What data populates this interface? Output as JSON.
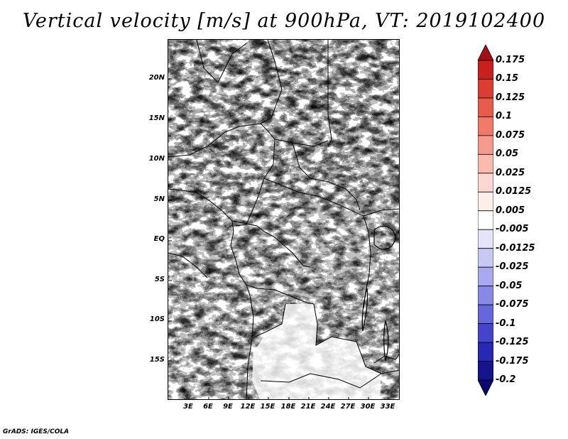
{
  "title": "Vertical velocity [m/s] at 900hPa, VT: 2019102400",
  "credit": "GrADS: IGES/COLA",
  "axes": {
    "lat_labels": [
      "20N",
      "15N",
      "10N",
      "5N",
      "EQ",
      "5S",
      "10S",
      "15S"
    ],
    "lon_labels": [
      "3E",
      "6E",
      "9E",
      "12E",
      "15E",
      "18E",
      "21E",
      "24E",
      "27E",
      "30E",
      "33E"
    ]
  },
  "colorbar": {
    "labels": [
      "0.175",
      "0.15",
      "0.125",
      "0.1",
      "0.075",
      "0.05",
      "0.025",
      "0.0125",
      "0.005",
      "-0.005",
      "-0.0125",
      "-0.025",
      "-0.05",
      "-0.075",
      "-0.1",
      "-0.125",
      "-0.175",
      "-0.2"
    ],
    "colors": [
      "#a50f15",
      "#c8201f",
      "#dc3c32",
      "#e85a4c",
      "#f07a6a",
      "#f59a8c",
      "#f9bab0",
      "#fcd6d0",
      "#feeeea",
      "#ffffff",
      "#e4e4fb",
      "#c8c8f5",
      "#a9a9ef",
      "#8888e6",
      "#6565dc",
      "#4545cc",
      "#2828b4",
      "#14148c",
      "#0a0a6e"
    ]
  },
  "chart_data": {
    "type": "heatmap",
    "title": "Vertical velocity [m/s] at 900hPa, VT: 2019102400",
    "variable": "Vertical velocity",
    "units": "m/s",
    "level": "900hPa",
    "valid_time": "2019102400",
    "x_range_deg": [
      0,
      35
    ],
    "y_range_deg": [
      -20,
      24
    ],
    "levels": [
      -0.2,
      -0.175,
      -0.125,
      -0.1,
      -0.075,
      -0.05,
      -0.025,
      -0.0125,
      -0.005,
      0.005,
      0.0125,
      0.025,
      0.05,
      0.075,
      0.1,
      0.125,
      0.15,
      0.175
    ]
  }
}
